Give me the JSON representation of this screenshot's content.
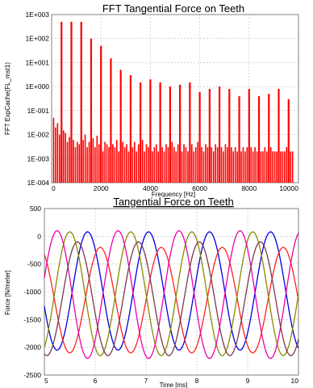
{
  "chart_data": [
    {
      "type": "bar",
      "title": "FFT Tangential Force on Teeth",
      "xlabel": "Frequency [Hz]",
      "ylabel": "FFT ExpCache(FL_mst1)",
      "yscale": "log",
      "xlim": [
        0,
        10000
      ],
      "ylim": [
        0.0001,
        1000
      ],
      "x_ticks": [
        0,
        2000,
        4000,
        6000,
        8000,
        10000
      ],
      "x_tick_labels": [
        "0",
        "2000",
        "4000",
        "6000",
        "8000",
        "10000"
      ],
      "y_ticks": [
        0.0001,
        0.001,
        0.01,
        0.1,
        1,
        10,
        100,
        1000
      ],
      "y_tick_labels": [
        "1E-004",
        "1E-003",
        "1E-002",
        "1E-001",
        "1E+000",
        "1E+001",
        "1E+002",
        "1E+003"
      ],
      "grid": true,
      "bar_color": "#ff0000",
      "major_peaks": {
        "x": [
          400,
          800,
          1200,
          1600,
          2000,
          2400,
          2800,
          3200,
          3600,
          4000,
          4400,
          4800,
          5200,
          5600,
          6000,
          6400,
          6800,
          7200,
          7600,
          8000,
          8400,
          8800,
          9200,
          9600
        ],
        "y": [
          500,
          500,
          500,
          100,
          50,
          15,
          5,
          3,
          1.5,
          2,
          1.5,
          1,
          1.2,
          1.5,
          0.6,
          0.8,
          1,
          0.8,
          0.4,
          0.8,
          0.4,
          0.5,
          0.8,
          0.3
        ]
      },
      "spacing_hz": 80,
      "noise_floor": [
        0.05,
        0.02,
        0.03,
        0.01,
        0.02,
        0.015,
        0.012,
        0.005,
        0.008,
        0.004,
        0.006,
        0.003,
        0.005,
        0.004,
        0.008,
        0.006,
        0.01,
        0.003,
        0.005,
        0.004,
        0.007,
        0.003,
        0.009,
        0.004,
        0.006,
        0.002,
        0.005,
        0.004,
        0.003,
        0.007,
        0.004,
        0.003,
        0.006,
        0.002,
        0.004,
        0.005,
        0.003,
        0.004,
        0.002,
        0.006,
        0.003,
        0.005,
        0.002,
        0.004,
        0.003,
        0.006,
        0.002,
        0.004,
        0.003,
        0.005,
        0.002,
        0.003,
        0.004,
        0.002,
        0.005,
        0.003,
        0.002,
        0.004,
        0.003,
        0.002,
        0.005,
        0.003,
        0.002,
        0.004,
        0.003,
        0.002,
        0.004,
        0.003,
        0.002,
        0.003,
        0.004,
        0.002,
        0.003,
        0.005,
        0.002,
        0.003,
        0.002,
        0.004,
        0.003,
        0.002,
        0.003,
        0.002,
        0.004,
        0.003,
        0.002,
        0.003,
        0.002,
        0.004,
        0.003,
        0.002,
        0.003,
        0.002,
        0.003,
        0.002,
        0.003,
        0.002,
        0.003,
        0.002,
        0.003,
        0.002,
        0.003,
        0.002,
        0.003,
        0.002,
        0.003,
        0.002,
        0.002,
        0.003,
        0.002,
        0.002,
        0.003,
        0.002,
        0.002,
        0.002,
        0.003,
        0.002,
        0.002,
        0.002,
        0.003,
        0.002,
        0.002,
        0.002
      ]
    },
    {
      "type": "line",
      "title": "Tangential Force on Teeth",
      "xlabel": "Time [ms]",
      "ylabel": "Force [N/meter]",
      "xlim": [
        5,
        10
      ],
      "ylim": [
        -2500,
        500
      ],
      "x_ticks": [
        5,
        6,
        7,
        8,
        9,
        10
      ],
      "x_tick_labels": [
        "5",
        "6",
        "7",
        "8",
        "9",
        "10"
      ],
      "y_ticks": [
        -2500,
        -2000,
        -1500,
        -1000,
        -500,
        0,
        500
      ],
      "y_tick_labels": [
        "-2500",
        "-2000",
        "-1500",
        "-1000",
        "-500",
        "0",
        "500"
      ],
      "grid": true,
      "period_ms": 1.2,
      "series": [
        {
          "color": "#0000dd",
          "max": 80,
          "min": -2050,
          "peak_time": 9.45
        },
        {
          "color": "#ff2222",
          "max": -200,
          "min": -2100,
          "peak_time": 9.7
        },
        {
          "color": "#8a8a00",
          "max": 80,
          "min": -2150,
          "peak_time": 9.1
        },
        {
          "color": "#ee00aa",
          "max": 100,
          "min": -2200,
          "peak_time": 8.85
        },
        {
          "color": "#7a3a4a",
          "max": -100,
          "min": -2150,
          "peak_time": 9.25
        }
      ]
    }
  ]
}
